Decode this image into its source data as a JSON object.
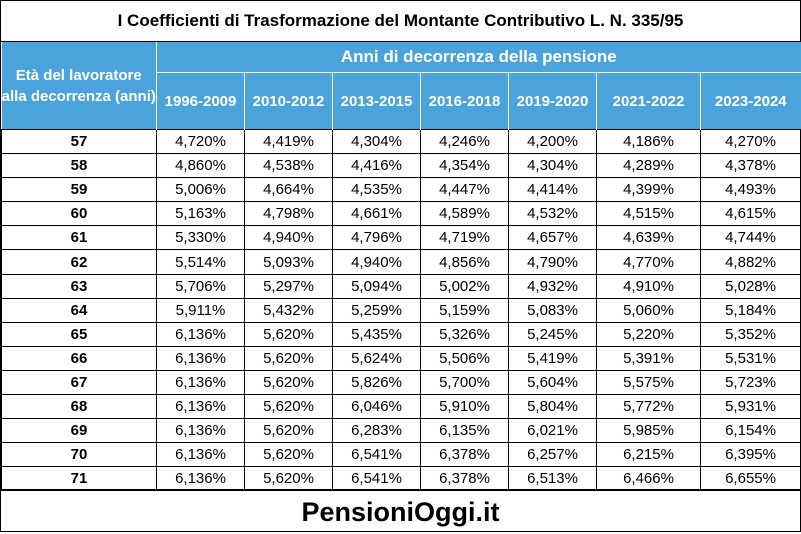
{
  "title": "I Coefficienti di Trasformazione del Montante Contributivo L. N. 335/95",
  "header": {
    "age_col": "Età del lavoratore alla decorrenza (anni)",
    "group": "Anni di decorrenza della pensione",
    "periods": [
      "1996-2009",
      "2010-2012",
      "2013-2015",
      "2016-2018",
      "2019-2020",
      "2021-2022",
      "2023-2024"
    ]
  },
  "rows": [
    {
      "age": "57",
      "values": [
        "4,720%",
        "4,419%",
        "4,304%",
        "4,246%",
        "4,200%",
        "4,186%",
        "4,270%"
      ]
    },
    {
      "age": "58",
      "values": [
        "4,860%",
        "4,538%",
        "4,416%",
        "4,354%",
        "4,304%",
        "4,289%",
        "4,378%"
      ]
    },
    {
      "age": "59",
      "values": [
        "5,006%",
        "4,664%",
        "4,535%",
        "4,447%",
        "4,414%",
        "4,399%",
        "4,493%"
      ]
    },
    {
      "age": "60",
      "values": [
        "5,163%",
        "4,798%",
        "4,661%",
        "4,589%",
        "4,532%",
        "4,515%",
        "4,615%"
      ]
    },
    {
      "age": "61",
      "values": [
        "5,330%",
        "4,940%",
        "4,796%",
        "4,719%",
        "4,657%",
        "4,639%",
        "4,744%"
      ]
    },
    {
      "age": "62",
      "values": [
        "5,514%",
        "5,093%",
        "4,940%",
        "4,856%",
        "4,790%",
        "4,770%",
        "4,882%"
      ]
    },
    {
      "age": "63",
      "values": [
        "5,706%",
        "5,297%",
        "5,094%",
        "5,002%",
        "4,932%",
        "4,910%",
        "5,028%"
      ]
    },
    {
      "age": "64",
      "values": [
        "5,911%",
        "5,432%",
        "5,259%",
        "5,159%",
        "5,083%",
        "5,060%",
        "5,184%"
      ]
    },
    {
      "age": "65",
      "values": [
        "6,136%",
        "5,620%",
        "5,435%",
        "5,326%",
        "5,245%",
        "5,220%",
        "5,352%"
      ]
    },
    {
      "age": "66",
      "values": [
        "6,136%",
        "5,620%",
        "5,624%",
        "5,506%",
        "5,419%",
        "5,391%",
        "5,531%"
      ]
    },
    {
      "age": "67",
      "values": [
        "6,136%",
        "5,620%",
        "5,826%",
        "5,700%",
        "5,604%",
        "5,575%",
        "5,723%"
      ]
    },
    {
      "age": "68",
      "values": [
        "6,136%",
        "5,620%",
        "6,046%",
        "5,910%",
        "5,804%",
        "5,772%",
        "5,931%"
      ]
    },
    {
      "age": "69",
      "values": [
        "6,136%",
        "5,620%",
        "6,283%",
        "6,135%",
        "6,021%",
        "5,985%",
        "6,154%"
      ]
    },
    {
      "age": "70",
      "values": [
        "6,136%",
        "5,620%",
        "6,541%",
        "6,378%",
        "6,257%",
        "6,215%",
        "6,395%"
      ]
    },
    {
      "age": "71",
      "values": [
        "6,136%",
        "5,620%",
        "6,541%",
        "6,378%",
        "6,513%",
        "6,466%",
        "6,655%"
      ]
    }
  ],
  "footer": "PensioniOggi.it",
  "colors": {
    "header_bg": "#4ba3dc",
    "header_text": "#ffffff",
    "border": "#000000"
  }
}
